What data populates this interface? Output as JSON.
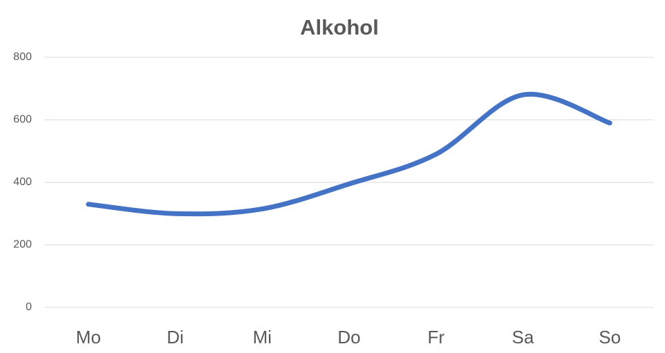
{
  "chart_data": {
    "type": "line",
    "title": "Alkohol",
    "categories": [
      "Mo",
      "Di",
      "Mi",
      "Do",
      "Fr",
      "Sa",
      "So"
    ],
    "values": [
      330,
      300,
      315,
      395,
      490,
      680,
      590
    ],
    "color": "#4472c4",
    "smooth": true,
    "ylim": [
      0,
      800
    ],
    "yticks": [
      0,
      200,
      400,
      600,
      800
    ],
    "grid": true
  }
}
